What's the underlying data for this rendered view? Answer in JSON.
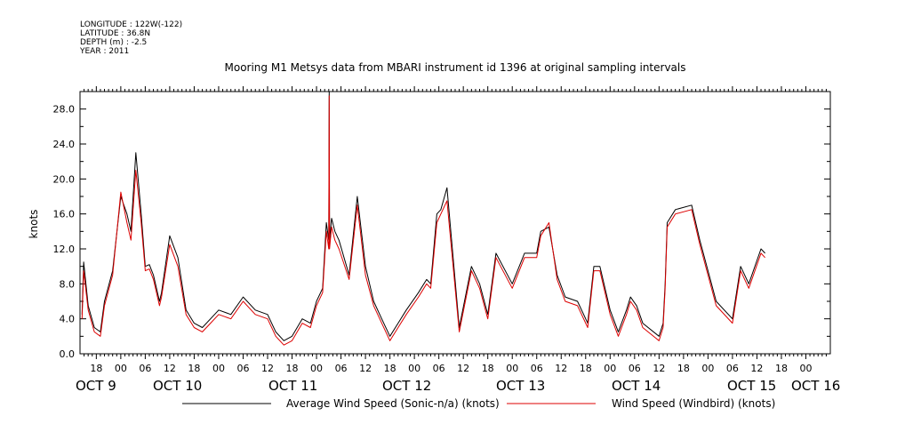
{
  "header": {
    "longitude": "LONGITUDE : 122W(-122)",
    "latitude": "LATITUDE : 36.8N",
    "depth": "DEPTH (m) : -2.5",
    "year": "YEAR : 2011",
    "title": "Mooring M1 Metsys data from MBARI instrument id 1396 at original sampling intervals"
  },
  "chart_data": {
    "type": "line",
    "title": "Mooring M1 Metsys data from MBARI instrument id 1396 at original sampling intervals",
    "ylabel": "knots",
    "xlabel": "",
    "xlim": [
      "2011-10-08 14:00",
      "2011-10-16 06:00"
    ],
    "ylim": [
      0,
      30
    ],
    "yticks": [
      "0.0",
      "4.0",
      "8.0",
      "12.0",
      "16.0",
      "20.0",
      "24.0",
      "28.0"
    ],
    "hour_ticks": [
      "18",
      "00",
      "06",
      "12",
      "18",
      "00",
      "06",
      "12",
      "18",
      "00",
      "06",
      "12",
      "18",
      "00",
      "06",
      "12",
      "18",
      "00",
      "06",
      "12",
      "18",
      "00",
      "06",
      "12",
      "18",
      "00",
      "06",
      "12",
      "18",
      "00"
    ],
    "day_labels": [
      "OCT  9",
      "OCT 10",
      "OCT 11",
      "OCT 12",
      "OCT 13",
      "OCT 14",
      "OCT 15",
      "OCT 16"
    ],
    "hours_from_oct9": [
      -9.5,
      -9.1,
      -8,
      -6.5,
      -5,
      -4,
      -2,
      0,
      1.5,
      2.5,
      3.7,
      5,
      6,
      7,
      8,
      9.5,
      10,
      12,
      14,
      16,
      18,
      20,
      22,
      24,
      27,
      30,
      33,
      36,
      38,
      40,
      42,
      44.5,
      46.5,
      48,
      49.5,
      50.4,
      51,
      51.1,
      51.2,
      51.7,
      52.5,
      53.5,
      56,
      58,
      60,
      62,
      64,
      66,
      68,
      70,
      73,
      75,
      76,
      77.5,
      78.5,
      80,
      83,
      86,
      88,
      90,
      92,
      96,
      99,
      102,
      103,
      105,
      107,
      109,
      112,
      114.5,
      116,
      117.5,
      120,
      122,
      124,
      125,
      126.5,
      128,
      132,
      133,
      133.5,
      134,
      136,
      140,
      142,
      146,
      150,
      152,
      154,
      157,
      158
    ],
    "gridlines": false,
    "legend": "bottom",
    "series": [
      {
        "name": "Average Wind Speed (Sonic-n/a) (knots)",
        "color": "#000000",
        "values": [
          4.5,
          10.5,
          5.5,
          3,
          2.5,
          6,
          9.5,
          18,
          16,
          14,
          23,
          16,
          10,
          10.2,
          9,
          6,
          7,
          13.5,
          11,
          5,
          3.5,
          3,
          4,
          5,
          4.5,
          6.5,
          5,
          4.5,
          2.5,
          1.5,
          2,
          4,
          3.5,
          6,
          7.5,
          15,
          13,
          30,
          13,
          15.5,
          14,
          13,
          9,
          18,
          10,
          6,
          4,
          2,
          3.5,
          5,
          7,
          8.5,
          8,
          16,
          16.5,
          19,
          3,
          10,
          8,
          4.5,
          11.5,
          8,
          11.5,
          11.5,
          14,
          14.5,
          9,
          6.5,
          6,
          3.5,
          10,
          10,
          5,
          2.5,
          5,
          6.5,
          5.5,
          3.5,
          2,
          3.5,
          8,
          15,
          16.5,
          17,
          13,
          6,
          4,
          10,
          8,
          12,
          11.5
        ]
      },
      {
        "name": "Wind Speed (Windbird) (knots)",
        "color": "#dd0000",
        "values": [
          4,
          9.5,
          5,
          2.5,
          2,
          5.5,
          9,
          18.5,
          15,
          13,
          21,
          15,
          9.5,
          9.7,
          8.5,
          5.5,
          6.5,
          12.5,
          10,
          4.5,
          3,
          2.5,
          3.5,
          4.5,
          4,
          6,
          4.5,
          4,
          2,
          1,
          1.5,
          3.5,
          3,
          5.5,
          7,
          14,
          12,
          29.5,
          12,
          14.5,
          13,
          12,
          8.5,
          17,
          9,
          5.5,
          3.5,
          1.5,
          3,
          4.5,
          6.5,
          8,
          7.5,
          15,
          16,
          17.5,
          2.5,
          9.5,
          7.5,
          4,
          11,
          7.5,
          11,
          11,
          13.5,
          15,
          8.5,
          6,
          5.5,
          3,
          9.5,
          9.5,
          4.5,
          2,
          4.5,
          6,
          5,
          3,
          1.5,
          3,
          7.5,
          14.5,
          16,
          16.5,
          12.5,
          5.5,
          3.5,
          9.5,
          7.5,
          11.5,
          11
        ]
      }
    ]
  }
}
